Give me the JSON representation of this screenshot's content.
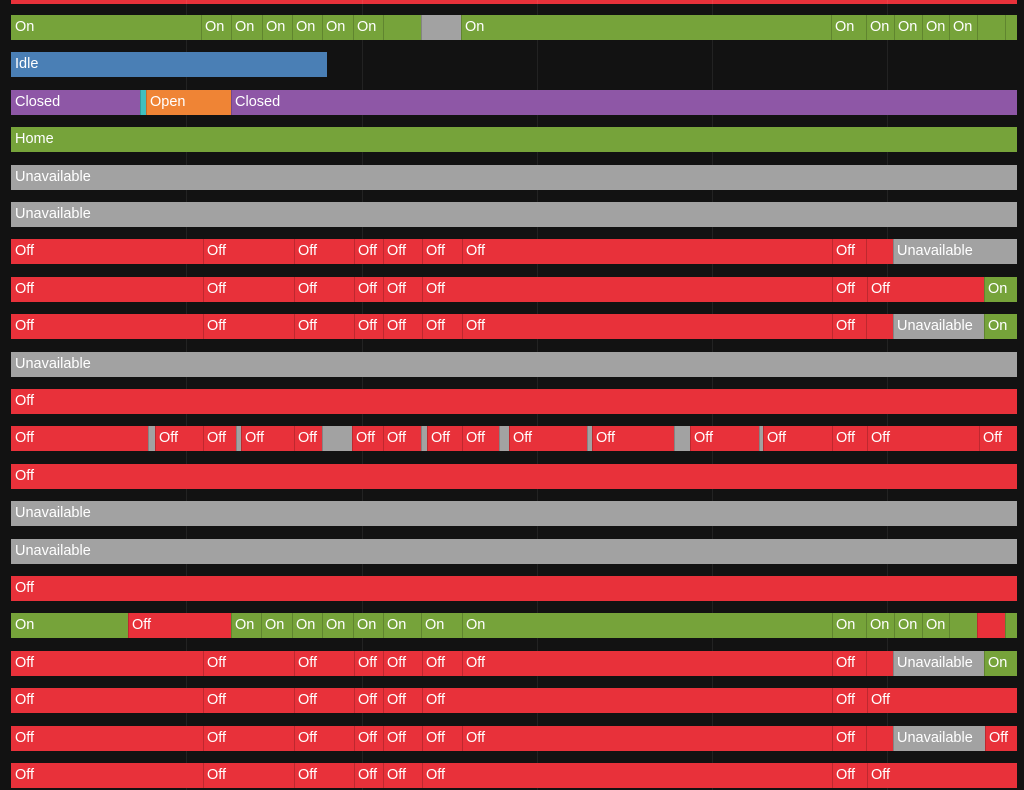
{
  "colors": {
    "on": "#76a33a",
    "off": "#e8313a",
    "unavailable": "#a2a2a2",
    "idle": "#4a7fb5",
    "closed": "#8e57a6",
    "open": "#ef8435",
    "home": "#76a33a",
    "marker": "#3fbfbf",
    "background": "#121212"
  },
  "rows": [
    {
      "segments": [
        [
          "on",
          "On",
          0,
          190
        ],
        [
          "on",
          "On",
          190,
          220
        ],
        [
          "on",
          "On",
          220,
          251
        ],
        [
          "on",
          "On",
          251,
          281
        ],
        [
          "on",
          "On",
          281,
          311
        ],
        [
          "on",
          "On",
          311,
          342
        ],
        [
          "on",
          "On",
          342,
          372
        ],
        [
          "on",
          "",
          372,
          410
        ],
        [
          "unavailable",
          "",
          410,
          450
        ],
        [
          "on",
          "On",
          450,
          820
        ],
        [
          "on",
          "On",
          820,
          855
        ],
        [
          "on",
          "On",
          855,
          883
        ],
        [
          "on",
          "On",
          883,
          911
        ],
        [
          "on",
          "On",
          911,
          938
        ],
        [
          "on",
          "On",
          938,
          966
        ],
        [
          "on",
          "",
          966,
          994
        ],
        [
          "on",
          "",
          994,
          1006
        ]
      ]
    },
    {
      "segments": [
        [
          "idle",
          "Idle",
          0,
          316
        ]
      ]
    },
    {
      "segments": [
        [
          "closed",
          "Closed",
          0,
          129
        ],
        [
          "marker",
          "",
          129,
          135
        ],
        [
          "open",
          "Open",
          135,
          220
        ],
        [
          "closed",
          "Closed",
          220,
          1006
        ]
      ]
    },
    {
      "segments": [
        [
          "home",
          "Home",
          0,
          1006
        ]
      ]
    },
    {
      "segments": [
        [
          "unavailable",
          "Unavailable",
          0,
          1006
        ]
      ]
    },
    {
      "segments": [
        [
          "unavailable",
          "Unavailable",
          0,
          1006
        ]
      ]
    },
    {
      "segments": [
        [
          "off",
          "Off",
          0,
          192
        ],
        [
          "off",
          "Off",
          192,
          283
        ],
        [
          "off",
          "Off",
          283,
          343
        ],
        [
          "off",
          "Off",
          343,
          372
        ],
        [
          "off",
          "Off",
          372,
          411
        ],
        [
          "off",
          "Off",
          411,
          451
        ],
        [
          "off",
          "Off",
          451,
          821
        ],
        [
          "off",
          "Off",
          821,
          855
        ],
        [
          "off",
          "",
          855,
          882
        ],
        [
          "unavailable",
          "Unavailable",
          882,
          1006
        ]
      ]
    },
    {
      "segments": [
        [
          "off",
          "Off",
          0,
          192
        ],
        [
          "off",
          "Off",
          192,
          283
        ],
        [
          "off",
          "Off",
          283,
          343
        ],
        [
          "off",
          "Off",
          343,
          372
        ],
        [
          "off",
          "Off",
          372,
          411
        ],
        [
          "off",
          "Off",
          411,
          821
        ],
        [
          "off",
          "Off",
          821,
          856
        ],
        [
          "off",
          "Off",
          856,
          973
        ],
        [
          "on",
          "On",
          973,
          1006
        ]
      ]
    },
    {
      "segments": [
        [
          "off",
          "Off",
          0,
          192
        ],
        [
          "off",
          "Off",
          192,
          283
        ],
        [
          "off",
          "Off",
          283,
          343
        ],
        [
          "off",
          "Off",
          343,
          372
        ],
        [
          "off",
          "Off",
          372,
          411
        ],
        [
          "off",
          "Off",
          411,
          451
        ],
        [
          "off",
          "Off",
          451,
          821
        ],
        [
          "off",
          "Off",
          821,
          855
        ],
        [
          "off",
          "",
          855,
          882
        ],
        [
          "unavailable",
          "Unavailable",
          882,
          973
        ],
        [
          "on",
          "On",
          973,
          1006
        ]
      ]
    },
    {
      "segments": [
        [
          "unavailable",
          "Unavailable",
          0,
          1006
        ]
      ]
    },
    {
      "segments": [
        [
          "off",
          "Off",
          0,
          1006
        ]
      ]
    },
    {
      "segments": [
        [
          "off",
          "Off",
          0,
          137
        ],
        [
          "unavailable",
          "",
          137,
          144
        ],
        [
          "off",
          "Off",
          144,
          192
        ],
        [
          "off",
          "Off",
          192,
          225
        ],
        [
          "unavailable",
          "",
          225,
          230
        ],
        [
          "off",
          "Off",
          230,
          283
        ],
        [
          "off",
          "Off",
          283,
          311
        ],
        [
          "unavailable",
          "",
          311,
          341
        ],
        [
          "off",
          "Off",
          341,
          372
        ],
        [
          "off",
          "Off",
          372,
          410
        ],
        [
          "unavailable",
          "",
          410,
          416
        ],
        [
          "off",
          "Off",
          416,
          451
        ],
        [
          "off",
          "Off",
          451,
          488
        ],
        [
          "unavailable",
          "",
          488,
          498
        ],
        [
          "off",
          "Off",
          498,
          576
        ],
        [
          "unavailable",
          "",
          576,
          581
        ],
        [
          "off",
          "Off",
          581,
          663
        ],
        [
          "unavailable",
          "",
          663,
          679
        ],
        [
          "off",
          "Off",
          679,
          748
        ],
        [
          "unavailable",
          "",
          748,
          752
        ],
        [
          "off",
          "Off",
          752,
          821
        ],
        [
          "off",
          "Off",
          821,
          856
        ],
        [
          "off",
          "Off",
          856,
          968
        ],
        [
          "off",
          "Off",
          968,
          1006
        ]
      ]
    },
    {
      "segments": [
        [
          "off",
          "Off",
          0,
          1006
        ]
      ]
    },
    {
      "segments": [
        [
          "unavailable",
          "Unavailable",
          0,
          1006
        ]
      ]
    },
    {
      "segments": [
        [
          "unavailable",
          "Unavailable",
          0,
          1006
        ]
      ]
    },
    {
      "segments": [
        [
          "off",
          "Off",
          0,
          1006
        ]
      ]
    },
    {
      "segments": [
        [
          "on",
          "On",
          0,
          117
        ],
        [
          "off",
          "Off",
          117,
          220
        ],
        [
          "on",
          "On",
          220,
          250
        ],
        [
          "on",
          "On",
          250,
          281
        ],
        [
          "on",
          "On",
          281,
          311
        ],
        [
          "on",
          "On",
          311,
          342
        ],
        [
          "on",
          "On",
          342,
          372
        ],
        [
          "on",
          "On",
          372,
          410
        ],
        [
          "on",
          "On",
          410,
          451
        ],
        [
          "on",
          "On",
          451,
          821
        ],
        [
          "on",
          "On",
          821,
          855
        ],
        [
          "on",
          "On",
          855,
          883
        ],
        [
          "on",
          "On",
          883,
          911
        ],
        [
          "on",
          "On",
          911,
          938
        ],
        [
          "on",
          "",
          938,
          966
        ],
        [
          "off",
          "",
          966,
          994
        ],
        [
          "on",
          "",
          994,
          1006
        ]
      ]
    },
    {
      "segments": [
        [
          "off",
          "Off",
          0,
          192
        ],
        [
          "off",
          "Off",
          192,
          283
        ],
        [
          "off",
          "Off",
          283,
          343
        ],
        [
          "off",
          "Off",
          343,
          372
        ],
        [
          "off",
          "Off",
          372,
          411
        ],
        [
          "off",
          "Off",
          411,
          451
        ],
        [
          "off",
          "Off",
          451,
          821
        ],
        [
          "off",
          "Off",
          821,
          855
        ],
        [
          "off",
          "",
          855,
          882
        ],
        [
          "unavailable",
          "Unavailable",
          882,
          973
        ],
        [
          "on",
          "On",
          973,
          1006
        ]
      ]
    },
    {
      "segments": [
        [
          "off",
          "Off",
          0,
          192
        ],
        [
          "off",
          "Off",
          192,
          283
        ],
        [
          "off",
          "Off",
          283,
          343
        ],
        [
          "off",
          "Off",
          343,
          372
        ],
        [
          "off",
          "Off",
          372,
          411
        ],
        [
          "off",
          "Off",
          411,
          821
        ],
        [
          "off",
          "Off",
          821,
          856
        ],
        [
          "off",
          "Off",
          856,
          1006
        ]
      ]
    },
    {
      "segments": [
        [
          "off",
          "Off",
          0,
          192
        ],
        [
          "off",
          "Off",
          192,
          283
        ],
        [
          "off",
          "Off",
          283,
          343
        ],
        [
          "off",
          "Off",
          343,
          372
        ],
        [
          "off",
          "Off",
          372,
          411
        ],
        [
          "off",
          "Off",
          411,
          451
        ],
        [
          "off",
          "Off",
          451,
          821
        ],
        [
          "off",
          "Off",
          821,
          855
        ],
        [
          "off",
          "",
          855,
          882
        ],
        [
          "unavailable",
          "Unavailable",
          882,
          974
        ],
        [
          "off",
          "Off",
          974,
          1006
        ]
      ]
    },
    {
      "segments": [
        [
          "off",
          "Off",
          0,
          192
        ],
        [
          "off",
          "Off",
          192,
          283
        ],
        [
          "off",
          "Off",
          283,
          343
        ],
        [
          "off",
          "Off",
          343,
          372
        ],
        [
          "off",
          "Off",
          372,
          411
        ],
        [
          "off",
          "Off",
          411,
          821
        ],
        [
          "off",
          "Off",
          821,
          856
        ],
        [
          "off",
          "Off",
          856,
          1006
        ]
      ]
    }
  ]
}
